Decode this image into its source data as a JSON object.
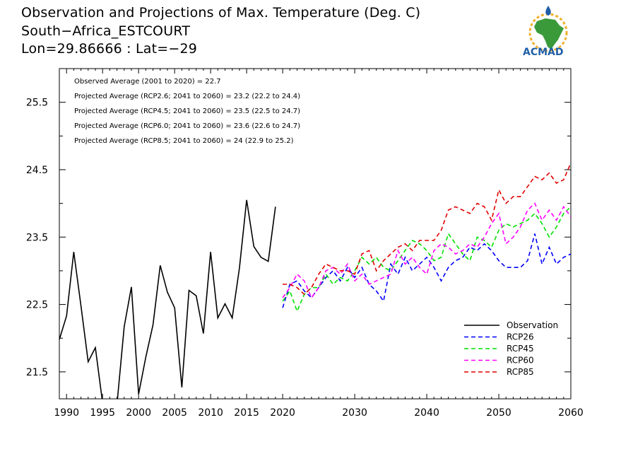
{
  "header": {
    "title": "Observation and Projections of Max. Temperature (Deg. C)",
    "location": "South−Africa_ESTCOURT",
    "coords": "Lon=29.86666 : Lat=−29"
  },
  "logo": {
    "text": "ACMAD"
  },
  "colors": {
    "observation": "#000000",
    "rcp26": "#0000ff",
    "rcp45": "#00e000",
    "rcp60": "#ff00ff",
    "rcp85": "#e00000"
  },
  "chart_data": {
    "type": "line",
    "xlim": [
      1989,
      2060
    ],
    "ylim": [
      21.1,
      26.0
    ],
    "x_ticks": [
      1990,
      1995,
      2000,
      2005,
      2010,
      2015,
      2020,
      2030,
      2040,
      2050,
      2060
    ],
    "y_ticks": [
      21.5,
      22.5,
      23.5,
      24.5,
      25.5
    ],
    "stats": [
      "Observed Average (2001 to 2020) = 22.7",
      "Projected Average (RCP2.6; 2041 to 2060) = 23.2 (22.2 to 24.4)",
      "Projected Average (RCP4.5; 2041 to 2060) = 23.5 (22.5 to 24.7)",
      "Projected Average (RCP6.0; 2041 to 2060) = 23.6 (22.6 to 24.7)",
      "Projected Average (RCP8.5; 2041 to 2060) = 24 (22.9 to 25.2)"
    ],
    "legend": [
      "Observation",
      "RCP26",
      "RCP45",
      "RCP60",
      "RCP85"
    ],
    "legend_position": "bottom-right",
    "observation": {
      "name": "Observation",
      "x": [
        1989,
        1990,
        1991,
        1992,
        1993,
        1994,
        1995,
        1996,
        1997,
        1998,
        1999,
        2000,
        2001,
        2002,
        2003,
        2004,
        2005,
        2006,
        2007,
        2008,
        2009,
        2010,
        2011,
        2012,
        2013,
        2014,
        2015,
        2016,
        2017,
        2018,
        2019
      ],
      "y": [
        21.98,
        22.33,
        23.28,
        22.48,
        21.65,
        21.86,
        21.04,
        20.66,
        21.02,
        22.17,
        22.76,
        21.17,
        21.72,
        22.2,
        23.08,
        22.68,
        22.45,
        21.27,
        22.71,
        22.63,
        22.07,
        23.28,
        22.3,
        22.51,
        22.3,
        23.04,
        24.05,
        23.36,
        23.2,
        23.14,
        23.95
      ]
    },
    "series": [
      {
        "name": "RCP26",
        "x": [
          2020,
          2021,
          2022,
          2023,
          2024,
          2025,
          2026,
          2027,
          2028,
          2029,
          2030,
          2031,
          2032,
          2033,
          2034,
          2035,
          2036,
          2037,
          2038,
          2039,
          2040,
          2041,
          2042,
          2043,
          2044,
          2045,
          2046,
          2047,
          2048,
          2049,
          2050,
          2051,
          2052,
          2053,
          2054,
          2055,
          2056,
          2057,
          2058,
          2059,
          2060
        ],
        "y": [
          22.45,
          22.8,
          22.85,
          22.7,
          22.6,
          22.75,
          22.9,
          23.0,
          22.85,
          23.05,
          22.9,
          23.05,
          22.8,
          22.7,
          22.55,
          23.1,
          22.95,
          23.2,
          23.0,
          23.1,
          23.2,
          23.05,
          22.85,
          23.05,
          23.15,
          23.2,
          23.35,
          23.3,
          23.4,
          23.3,
          23.15,
          23.05,
          23.05,
          23.05,
          23.15,
          23.55,
          23.1,
          23.35,
          23.1,
          23.2,
          23.25
        ]
      },
      {
        "name": "RCP45",
        "x": [
          2020,
          2021,
          2022,
          2023,
          2024,
          2025,
          2026,
          2027,
          2028,
          2029,
          2030,
          2031,
          2032,
          2033,
          2034,
          2035,
          2036,
          2037,
          2038,
          2039,
          2040,
          2041,
          2042,
          2043,
          2044,
          2045,
          2046,
          2047,
          2048,
          2049,
          2050,
          2051,
          2052,
          2053,
          2054,
          2055,
          2056,
          2057,
          2058,
          2059,
          2060
        ],
        "y": [
          22.55,
          22.7,
          22.4,
          22.65,
          22.75,
          22.75,
          22.95,
          22.8,
          22.9,
          22.85,
          23.0,
          23.2,
          23.1,
          23.2,
          23.05,
          23.0,
          23.15,
          23.3,
          23.45,
          23.4,
          23.3,
          23.15,
          23.2,
          23.55,
          23.4,
          23.25,
          23.15,
          23.5,
          23.45,
          23.35,
          23.6,
          23.7,
          23.65,
          23.7,
          23.75,
          23.85,
          23.7,
          23.5,
          23.65,
          23.85,
          23.95
        ]
      },
      {
        "name": "RCP60",
        "x": [
          2020,
          2021,
          2022,
          2023,
          2024,
          2025,
          2026,
          2027,
          2028,
          2029,
          2030,
          2031,
          2032,
          2033,
          2034,
          2035,
          2036,
          2037,
          2038,
          2039,
          2040,
          2041,
          2042,
          2043,
          2044,
          2045,
          2046,
          2047,
          2048,
          2049,
          2050,
          2051,
          2052,
          2053,
          2054,
          2055,
          2056,
          2057,
          2058,
          2059,
          2060
        ],
        "y": [
          22.6,
          22.75,
          22.95,
          22.85,
          22.6,
          22.75,
          23.0,
          23.05,
          22.95,
          23.1,
          22.85,
          22.95,
          22.8,
          22.85,
          22.9,
          22.95,
          23.3,
          23.1,
          23.2,
          23.05,
          22.95,
          23.3,
          23.4,
          23.35,
          23.25,
          23.3,
          23.4,
          23.35,
          23.5,
          23.7,
          23.85,
          23.4,
          23.5,
          23.65,
          23.9,
          24.0,
          23.75,
          23.9,
          23.75,
          23.95,
          23.8
        ]
      },
      {
        "name": "RCP85",
        "x": [
          2020,
          2021,
          2022,
          2023,
          2024,
          2025,
          2026,
          2027,
          2028,
          2029,
          2030,
          2031,
          2032,
          2033,
          2034,
          2035,
          2036,
          2037,
          2038,
          2039,
          2040,
          2041,
          2042,
          2043,
          2044,
          2045,
          2046,
          2047,
          2048,
          2049,
          2050,
          2051,
          2052,
          2053,
          2054,
          2055,
          2056,
          2057,
          2058,
          2059,
          2060
        ],
        "y": [
          22.8,
          22.8,
          22.75,
          22.65,
          22.75,
          22.95,
          23.1,
          23.05,
          23.0,
          23.0,
          22.95,
          23.25,
          23.3,
          23.0,
          23.15,
          23.25,
          23.35,
          23.4,
          23.3,
          23.45,
          23.45,
          23.45,
          23.6,
          23.9,
          23.95,
          23.9,
          23.85,
          24.0,
          23.95,
          23.75,
          24.2,
          24.0,
          24.1,
          24.1,
          24.25,
          24.4,
          24.35,
          24.45,
          24.3,
          24.35,
          24.6
        ]
      }
    ]
  }
}
